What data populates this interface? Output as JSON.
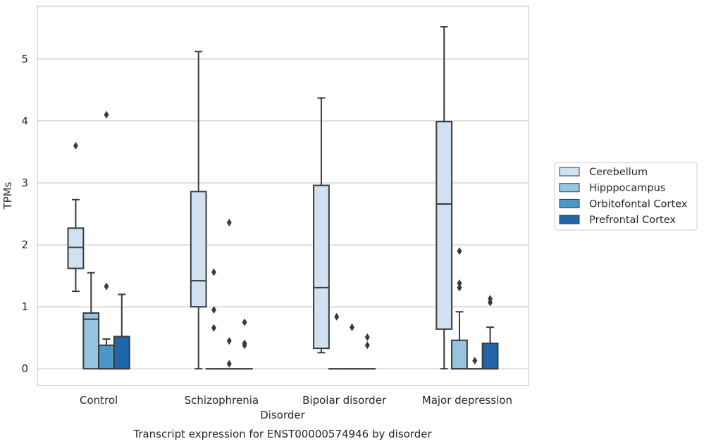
{
  "chart_data": {
    "type": "box",
    "title": "Transcript expression for ENST00000574946 by disorder",
    "xlabel": "Disorder",
    "ylabel": "TPMs",
    "ylim": [
      -0.27,
      5.85
    ],
    "yticks": [
      0,
      1,
      2,
      3,
      4,
      5
    ],
    "grid": true,
    "legend_position": "right",
    "categories": [
      "Control",
      "Schizophrenia",
      "Bipolar disorder",
      "Major depression"
    ],
    "series": [
      {
        "name": "Cerebellum",
        "color": "#d0e1f2",
        "boxes": [
          {
            "q1": 1.62,
            "median": 1.96,
            "q3": 2.27,
            "whisker_low": 1.25,
            "whisker_high": 2.73,
            "outliers": [
              3.6
            ]
          },
          {
            "q1": 1.0,
            "median": 1.42,
            "q3": 2.86,
            "whisker_low": 0.0,
            "whisker_high": 5.12,
            "outliers": []
          },
          {
            "q1": 0.33,
            "median": 1.31,
            "q3": 2.96,
            "whisker_low": 0.26,
            "whisker_high": 4.37,
            "outliers": []
          },
          {
            "q1": 0.64,
            "median": 2.66,
            "q3": 3.99,
            "whisker_low": 0.0,
            "whisker_high": 5.52,
            "outliers": []
          }
        ]
      },
      {
        "name": "Hipppocampus",
        "color": "#94c4df",
        "boxes": [
          {
            "q1": 0.0,
            "median": 0.8,
            "q3": 0.9,
            "whisker_low": 0.0,
            "whisker_high": 1.55,
            "outliers": []
          },
          {
            "q1": 0.0,
            "median": 0.0,
            "q3": 0.0,
            "whisker_low": 0.0,
            "whisker_high": 0.0,
            "outliers": [
              0.66,
              0.95,
              1.56
            ]
          },
          {
            "q1": 0.0,
            "median": 0.0,
            "q3": 0.0,
            "whisker_low": 0.0,
            "whisker_high": 0.0,
            "outliers": [
              0.84
            ]
          },
          {
            "q1": 0.0,
            "median": 0.0,
            "q3": 0.46,
            "whisker_low": 0.0,
            "whisker_high": 0.92,
            "outliers": [
              1.31,
              1.38,
              1.9
            ]
          }
        ]
      },
      {
        "name": "Orbitofontal Cortex",
        "color": "#4a98c9",
        "boxes": [
          {
            "q1": 0.0,
            "median": 0.0,
            "q3": 0.38,
            "whisker_low": 0.0,
            "whisker_high": 0.48,
            "outliers": [
              1.33,
              4.1
            ]
          },
          {
            "q1": 0.0,
            "median": 0.0,
            "q3": 0.0,
            "whisker_low": 0.0,
            "whisker_high": 0.0,
            "outliers": [
              0.08,
              0.45,
              2.36
            ]
          },
          {
            "q1": 0.0,
            "median": 0.0,
            "q3": 0.0,
            "whisker_low": 0.0,
            "whisker_high": 0.0,
            "outliers": [
              0.67
            ]
          },
          {
            "q1": 0.0,
            "median": 0.0,
            "q3": 0.0,
            "whisker_low": 0.0,
            "whisker_high": 0.0,
            "outliers": [
              0.13
            ]
          }
        ]
      },
      {
        "name": "Prefrontal Cortex",
        "color": "#2165ab",
        "boxes": [
          {
            "q1": 0.0,
            "median": 0.0,
            "q3": 0.52,
            "whisker_low": 0.0,
            "whisker_high": 1.2,
            "outliers": []
          },
          {
            "q1": 0.0,
            "median": 0.0,
            "q3": 0.0,
            "whisker_low": 0.0,
            "whisker_high": 0.0,
            "outliers": [
              0.38,
              0.41,
              0.75
            ]
          },
          {
            "q1": 0.0,
            "median": 0.0,
            "q3": 0.0,
            "whisker_low": 0.0,
            "whisker_high": 0.0,
            "outliers": [
              0.38,
              0.51
            ]
          },
          {
            "q1": 0.0,
            "median": 0.0,
            "q3": 0.41,
            "whisker_low": 0.0,
            "whisker_high": 0.67,
            "outliers": [
              1.07,
              1.13
            ]
          }
        ]
      }
    ]
  }
}
